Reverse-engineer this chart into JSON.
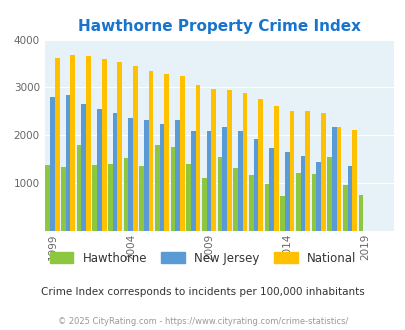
{
  "title": "Hawthorne Property Crime Index",
  "title_color": "#1874cd",
  "subtitle": "Crime Index corresponds to incidents per 100,000 inhabitants",
  "copyright": "© 2025 CityRating.com - https://www.cityrating.com/crime-statistics/",
  "years": [
    1999,
    2000,
    2001,
    2002,
    2003,
    2004,
    2005,
    2006,
    2007,
    2008,
    2009,
    2010,
    2011,
    2012,
    2013,
    2014,
    2015,
    2016,
    2017,
    2018,
    2019,
    2020
  ],
  "hawthorne": [
    1370,
    1340,
    1800,
    1380,
    1410,
    1530,
    1360,
    1790,
    1760,
    1410,
    1110,
    1550,
    1310,
    1160,
    980,
    730,
    1220,
    1200,
    1550,
    960,
    760,
    null
  ],
  "new_jersey": [
    2790,
    2850,
    2660,
    2560,
    2470,
    2360,
    2320,
    2240,
    2310,
    2100,
    2090,
    2170,
    2080,
    1920,
    1730,
    1650,
    1570,
    1440,
    2180,
    1360,
    null,
    null
  ],
  "national": [
    3620,
    3670,
    3650,
    3600,
    3530,
    3440,
    3340,
    3290,
    3230,
    3060,
    2960,
    2940,
    2890,
    2760,
    2620,
    2510,
    2500,
    2460,
    2180,
    2110,
    null,
    null
  ],
  "hawthorne_color": "#8dc63f",
  "new_jersey_color": "#5b9bd5",
  "national_color": "#ffc000",
  "bg_color": "#e6f2f7",
  "ylim": [
    0,
    4000
  ],
  "yticks": [
    0,
    1000,
    2000,
    3000,
    4000
  ],
  "xtick_years": [
    1999,
    2004,
    2009,
    2014,
    2019
  ],
  "bar_width": 0.3,
  "figsize": [
    4.06,
    3.3
  ],
  "dpi": 100
}
